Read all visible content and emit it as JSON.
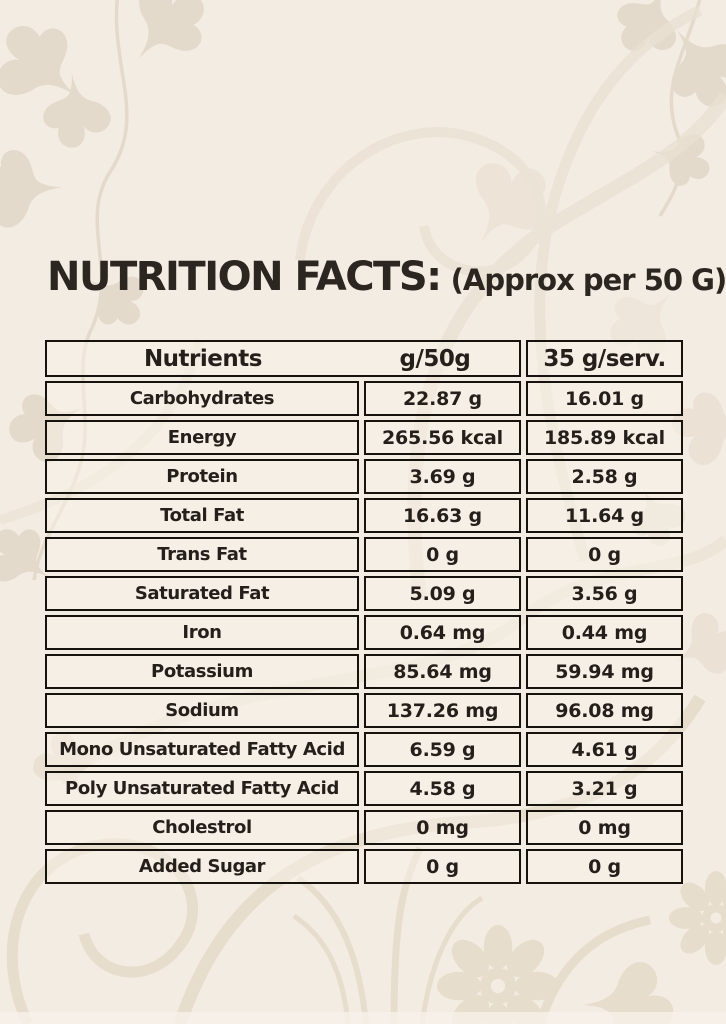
{
  "title": "NUTRITION FACTS:",
  "subtitle": "(Approx per 50 G)",
  "table": {
    "headers": [
      "Nutrients",
      "g/50g",
      "35 g/serv."
    ],
    "rows": [
      {
        "nutrient": "Carbohydrates",
        "per_50g": "22.87 g",
        "per_serving": "16.01 g"
      },
      {
        "nutrient": "Energy",
        "per_50g": "265.56 kcal",
        "per_serving": "185.89 kcal"
      },
      {
        "nutrient": "Protein",
        "per_50g": "3.69 g",
        "per_serving": "2.58 g"
      },
      {
        "nutrient": "Total Fat",
        "per_50g": "16.63 g",
        "per_serving": "11.64 g"
      },
      {
        "nutrient": "Trans Fat",
        "per_50g": "0 g",
        "per_serving": "0 g"
      },
      {
        "nutrient": "Saturated Fat",
        "per_50g": "5.09 g",
        "per_serving": "3.56 g"
      },
      {
        "nutrient": "Iron",
        "per_50g": "0.64 mg",
        "per_serving": "0.44 mg"
      },
      {
        "nutrient": "Potassium",
        "per_50g": "85.64 mg",
        "per_serving": "59.94 mg"
      },
      {
        "nutrient": "Sodium",
        "per_50g": "137.26 mg",
        "per_serving": "96.08 mg"
      },
      {
        "nutrient": "Mono Unsaturated Fatty Acid",
        "per_50g": "6.59 g",
        "per_serving": "4.61 g"
      },
      {
        "nutrient": "Poly Unsaturated Fatty Acid",
        "per_50g": "4.58 g",
        "per_serving": "3.21 g"
      },
      {
        "nutrient": "Cholestrol",
        "per_50g": "0 mg",
        "per_serving": "0 mg"
      },
      {
        "nutrient": "Added Sugar",
        "per_50g": "0 g",
        "per_serving": "0 g"
      }
    ]
  },
  "colors": {
    "background": "#f2ece2",
    "pattern": "#e6dccc",
    "text": "#2b2620",
    "table_border": "#16120e",
    "cell_background": "#f7f1e8"
  }
}
